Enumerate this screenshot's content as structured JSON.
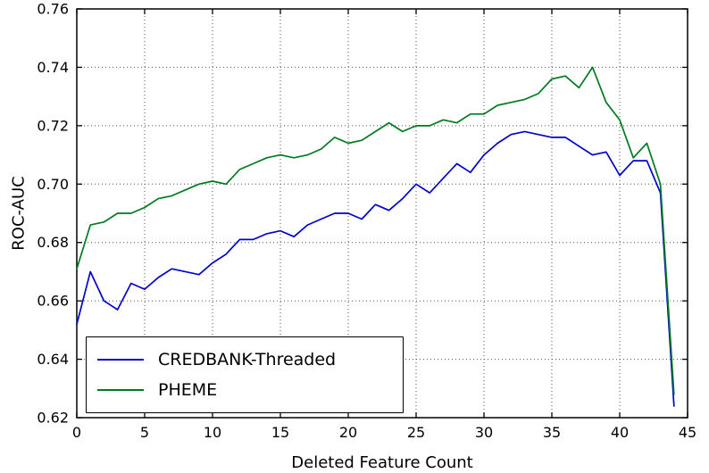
{
  "chart_data": {
    "type": "line",
    "title": "",
    "xlabel": "Deleted Feature Count",
    "ylabel": "ROC-AUC",
    "xlim": [
      0,
      45
    ],
    "ylim": [
      0.62,
      0.76
    ],
    "x_ticks": [
      0,
      5,
      10,
      15,
      20,
      25,
      30,
      35,
      40,
      45
    ],
    "y_ticks": [
      0.62,
      0.64,
      0.66,
      0.68,
      0.7,
      0.72,
      0.74,
      0.76
    ],
    "grid": true,
    "legend_position": "lower left",
    "x": [
      0,
      1,
      2,
      3,
      4,
      5,
      6,
      7,
      8,
      9,
      10,
      11,
      12,
      13,
      14,
      15,
      16,
      17,
      18,
      19,
      20,
      21,
      22,
      23,
      24,
      25,
      26,
      27,
      28,
      29,
      30,
      31,
      32,
      33,
      34,
      35,
      36,
      37,
      38,
      39,
      40,
      41,
      42,
      43,
      44
    ],
    "series": [
      {
        "name": "CREDBANK-Threaded",
        "color": "#0000cc",
        "values": [
          0.652,
          0.67,
          0.66,
          0.657,
          0.666,
          0.664,
          0.668,
          0.671,
          0.67,
          0.669,
          0.673,
          0.676,
          0.681,
          0.681,
          0.683,
          0.684,
          0.682,
          0.686,
          0.688,
          0.69,
          0.69,
          0.688,
          0.693,
          0.691,
          0.695,
          0.7,
          0.697,
          0.702,
          0.707,
          0.704,
          0.71,
          0.714,
          0.717,
          0.718,
          0.717,
          0.716,
          0.716,
          0.713,
          0.71,
          0.711,
          0.703,
          0.708,
          0.708,
          0.697,
          0.624
        ]
      },
      {
        "name": "PHEME",
        "color": "#007a1f",
        "values": [
          0.671,
          0.686,
          0.687,
          0.69,
          0.69,
          0.692,
          0.695,
          0.696,
          0.698,
          0.7,
          0.701,
          0.7,
          0.705,
          0.707,
          0.709,
          0.71,
          0.709,
          0.71,
          0.712,
          0.716,
          0.714,
          0.715,
          0.718,
          0.721,
          0.718,
          0.72,
          0.72,
          0.722,
          0.721,
          0.724,
          0.724,
          0.727,
          0.728,
          0.729,
          0.731,
          0.736,
          0.737,
          0.733,
          0.74,
          0.728,
          0.722,
          0.709,
          0.714,
          0.7,
          0.628
        ]
      }
    ]
  }
}
